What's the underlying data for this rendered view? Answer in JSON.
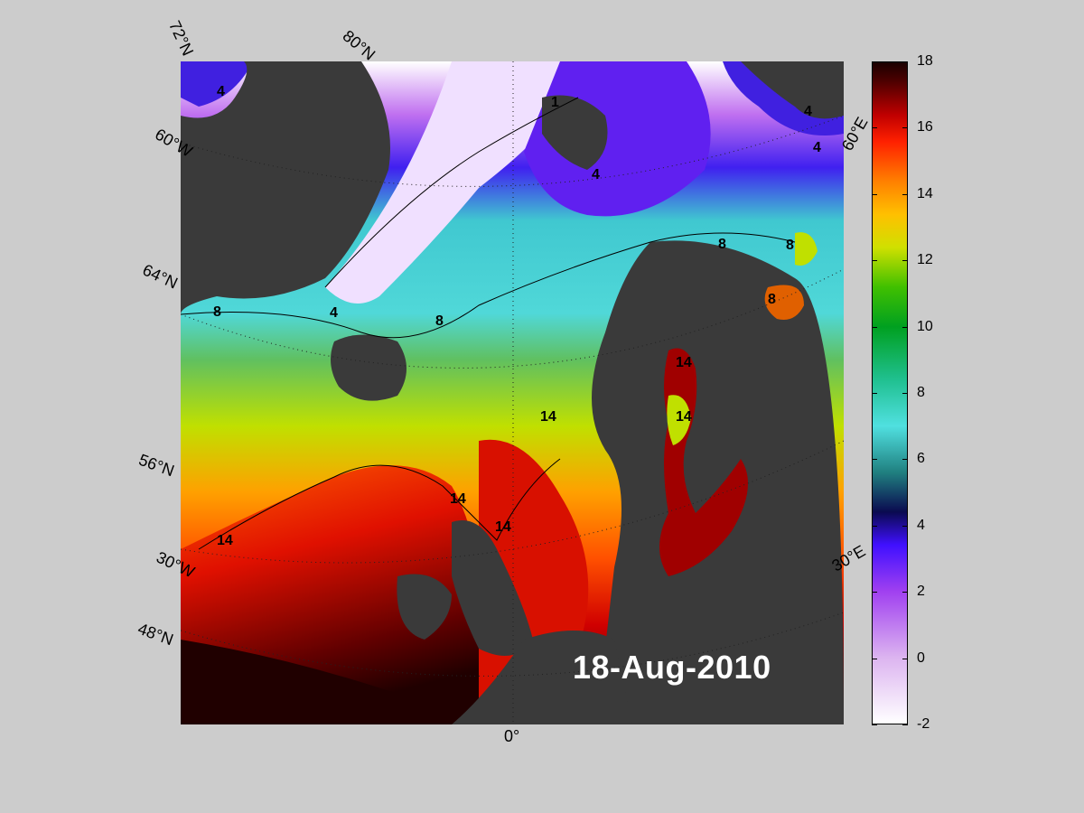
{
  "map": {
    "date": "18-Aug-2010",
    "latitude_labels": [
      "72°N",
      "60°W",
      "64°N",
      "56°N",
      "30°W",
      "48°N"
    ],
    "longitude_labels": [
      "80°N",
      "60°E",
      "30°E",
      "0°"
    ],
    "contour_labels": [
      "4",
      "8",
      "14",
      "1",
      "4",
      "4",
      "4",
      "4",
      "8",
      "8",
      "8",
      "8",
      "14",
      "14",
      "14",
      "14",
      "14"
    ]
  },
  "colorbar": {
    "ticks": [
      "18",
      "16",
      "14",
      "12",
      "10",
      "8",
      "6",
      "4",
      "2",
      "0",
      "-2"
    ],
    "min": -2,
    "max": 18
  },
  "colors": {
    "land": "#3a3a3a",
    "background": "#cccccc",
    "warm": "#c00000",
    "cold": "#ffffff"
  }
}
